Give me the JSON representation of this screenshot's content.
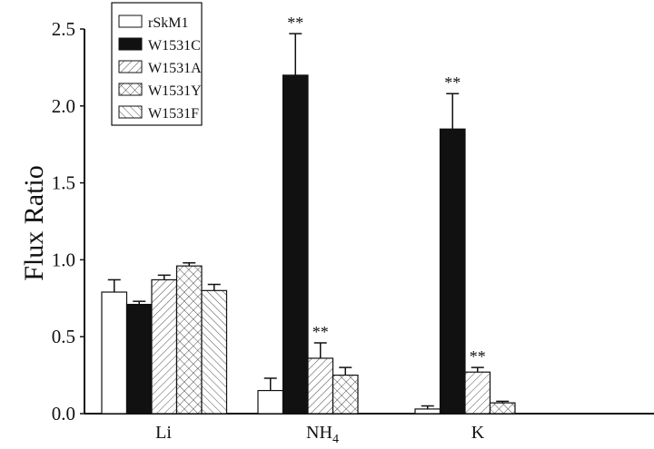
{
  "chart_data": {
    "type": "bar",
    "title": "",
    "xlabel": "",
    "ylabel": "Flux Ratio",
    "ylim": [
      0,
      2.5
    ],
    "yticks": [
      "0.0",
      "0.5",
      "1.0",
      "1.5",
      "2.0",
      "2.5"
    ],
    "categories": [
      "Li",
      "NH",
      "K"
    ],
    "category_subscripts": [
      "",
      "4",
      ""
    ],
    "grid": false,
    "legend_position": "top-left",
    "significance_marker": "**",
    "series": [
      {
        "name": "rSkM1",
        "pattern": "white",
        "values": [
          0.79,
          0.15,
          0.03
        ],
        "errors": [
          0.08,
          0.08,
          0.02
        ],
        "significant": [
          false,
          false,
          false
        ]
      },
      {
        "name": "W1531C",
        "pattern": "solid-black",
        "values": [
          0.71,
          2.2,
          1.85
        ],
        "errors": [
          0.02,
          0.27,
          0.23
        ],
        "significant": [
          false,
          true,
          true
        ]
      },
      {
        "name": "W1531A",
        "pattern": "forward-diagonal",
        "values": [
          0.87,
          0.36,
          0.27
        ],
        "errors": [
          0.03,
          0.1,
          0.03
        ],
        "significant": [
          false,
          true,
          true
        ]
      },
      {
        "name": "W1531Y",
        "pattern": "crosshatch",
        "values": [
          0.96,
          0.25,
          0.07
        ],
        "errors": [
          0.02,
          0.05,
          0.01
        ],
        "significant": [
          false,
          false,
          false
        ]
      },
      {
        "name": "W1531F",
        "pattern": "back-diagonal",
        "values": [
          0.8,
          null,
          null
        ],
        "errors": [
          0.04,
          null,
          null
        ],
        "significant": [
          false,
          false,
          false
        ]
      }
    ]
  }
}
